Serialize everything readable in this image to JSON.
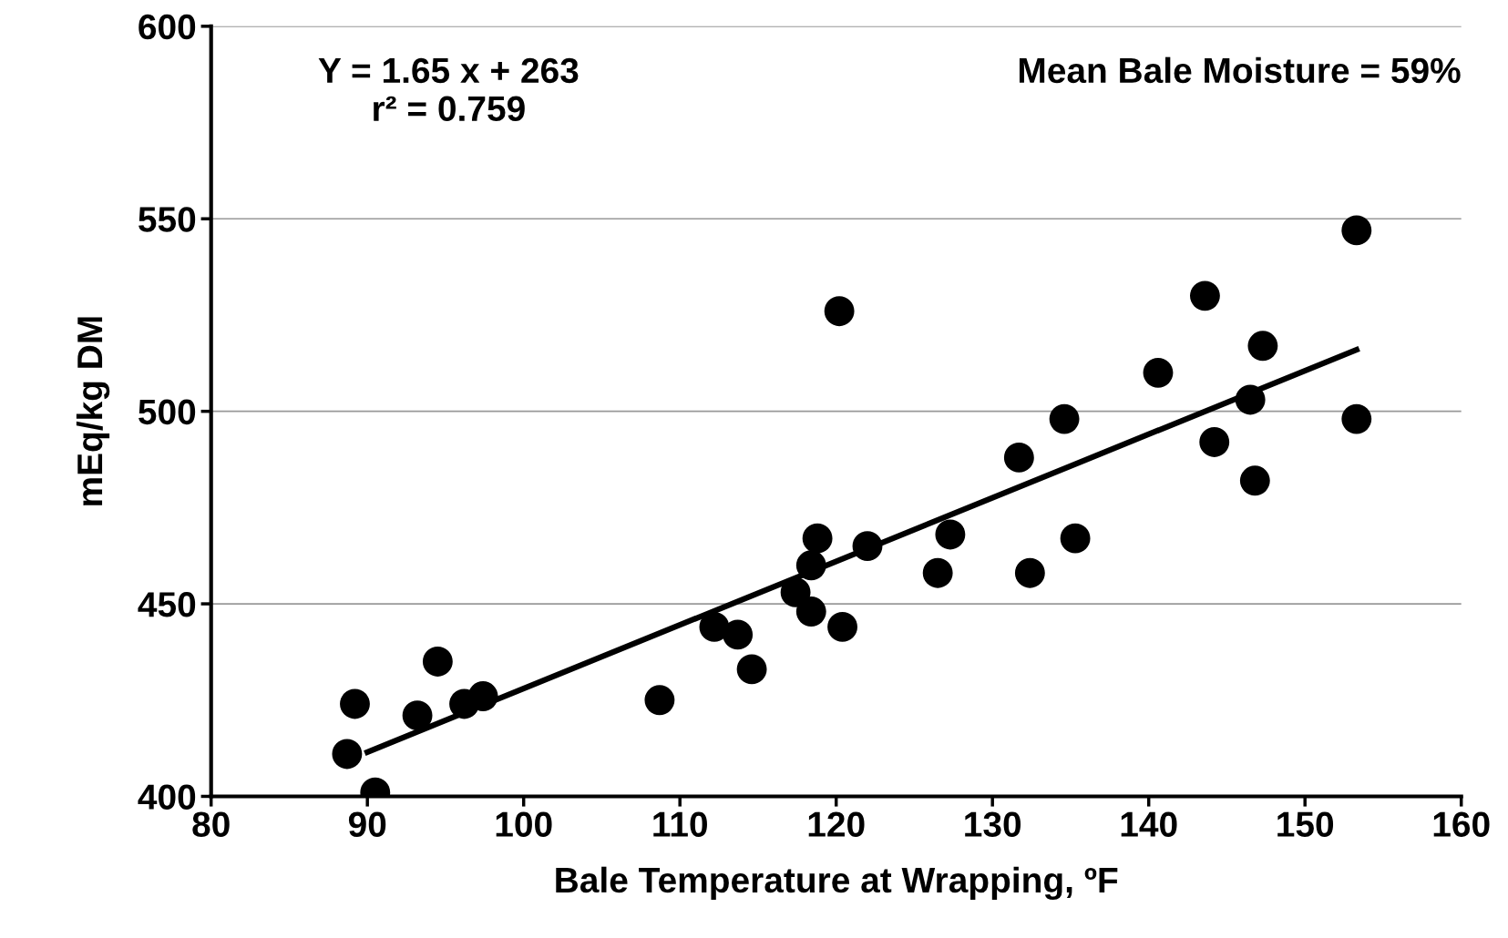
{
  "chart_data": {
    "type": "scatter",
    "xlabel": "Bale Temperature at Wrapping, ºF",
    "ylabel": "mEq/kg DM",
    "annotations": [
      "Y = 1.65 x + 263\nr² = 0.759",
      "Mean Bale Moisture = 59%"
    ],
    "xlim": [
      80,
      160
    ],
    "xticks": [
      80,
      90,
      100,
      110,
      120,
      130,
      140,
      150,
      160
    ],
    "ylim": [
      400,
      600
    ],
    "yticks": [
      400,
      450,
      500,
      550,
      600
    ],
    "grid": "y",
    "legend": false,
    "series": [
      {
        "color": "#000000",
        "marker": "circle",
        "x": [
          88.7,
          89.2,
          90.5,
          93.2,
          94.5,
          96.2,
          97.4,
          108.7,
          112.2,
          113.7,
          114.6,
          117.4,
          118.4,
          118.4,
          118.8,
          120.2,
          120.4,
          122.0,
          126.5,
          127.3,
          131.7,
          132.4,
          134.6,
          135.3,
          140.6,
          143.6,
          144.2,
          146.5,
          146.8,
          147.3,
          153.3,
          153.3
        ],
        "values": [
          411,
          424,
          401,
          421,
          435,
          424,
          426,
          425,
          444,
          442,
          433,
          453,
          448,
          460,
          467,
          526,
          444,
          465,
          458,
          468,
          488,
          458,
          498,
          467,
          510,
          530,
          492,
          503,
          482,
          517,
          498,
          547
        ]
      },
      {
        "type": "line",
        "color": "#000000",
        "line_style": "solid",
        "marker": "none",
        "x": [
          90,
          153.3
        ],
        "values": [
          411.5,
          516.0
        ]
      }
    ]
  }
}
